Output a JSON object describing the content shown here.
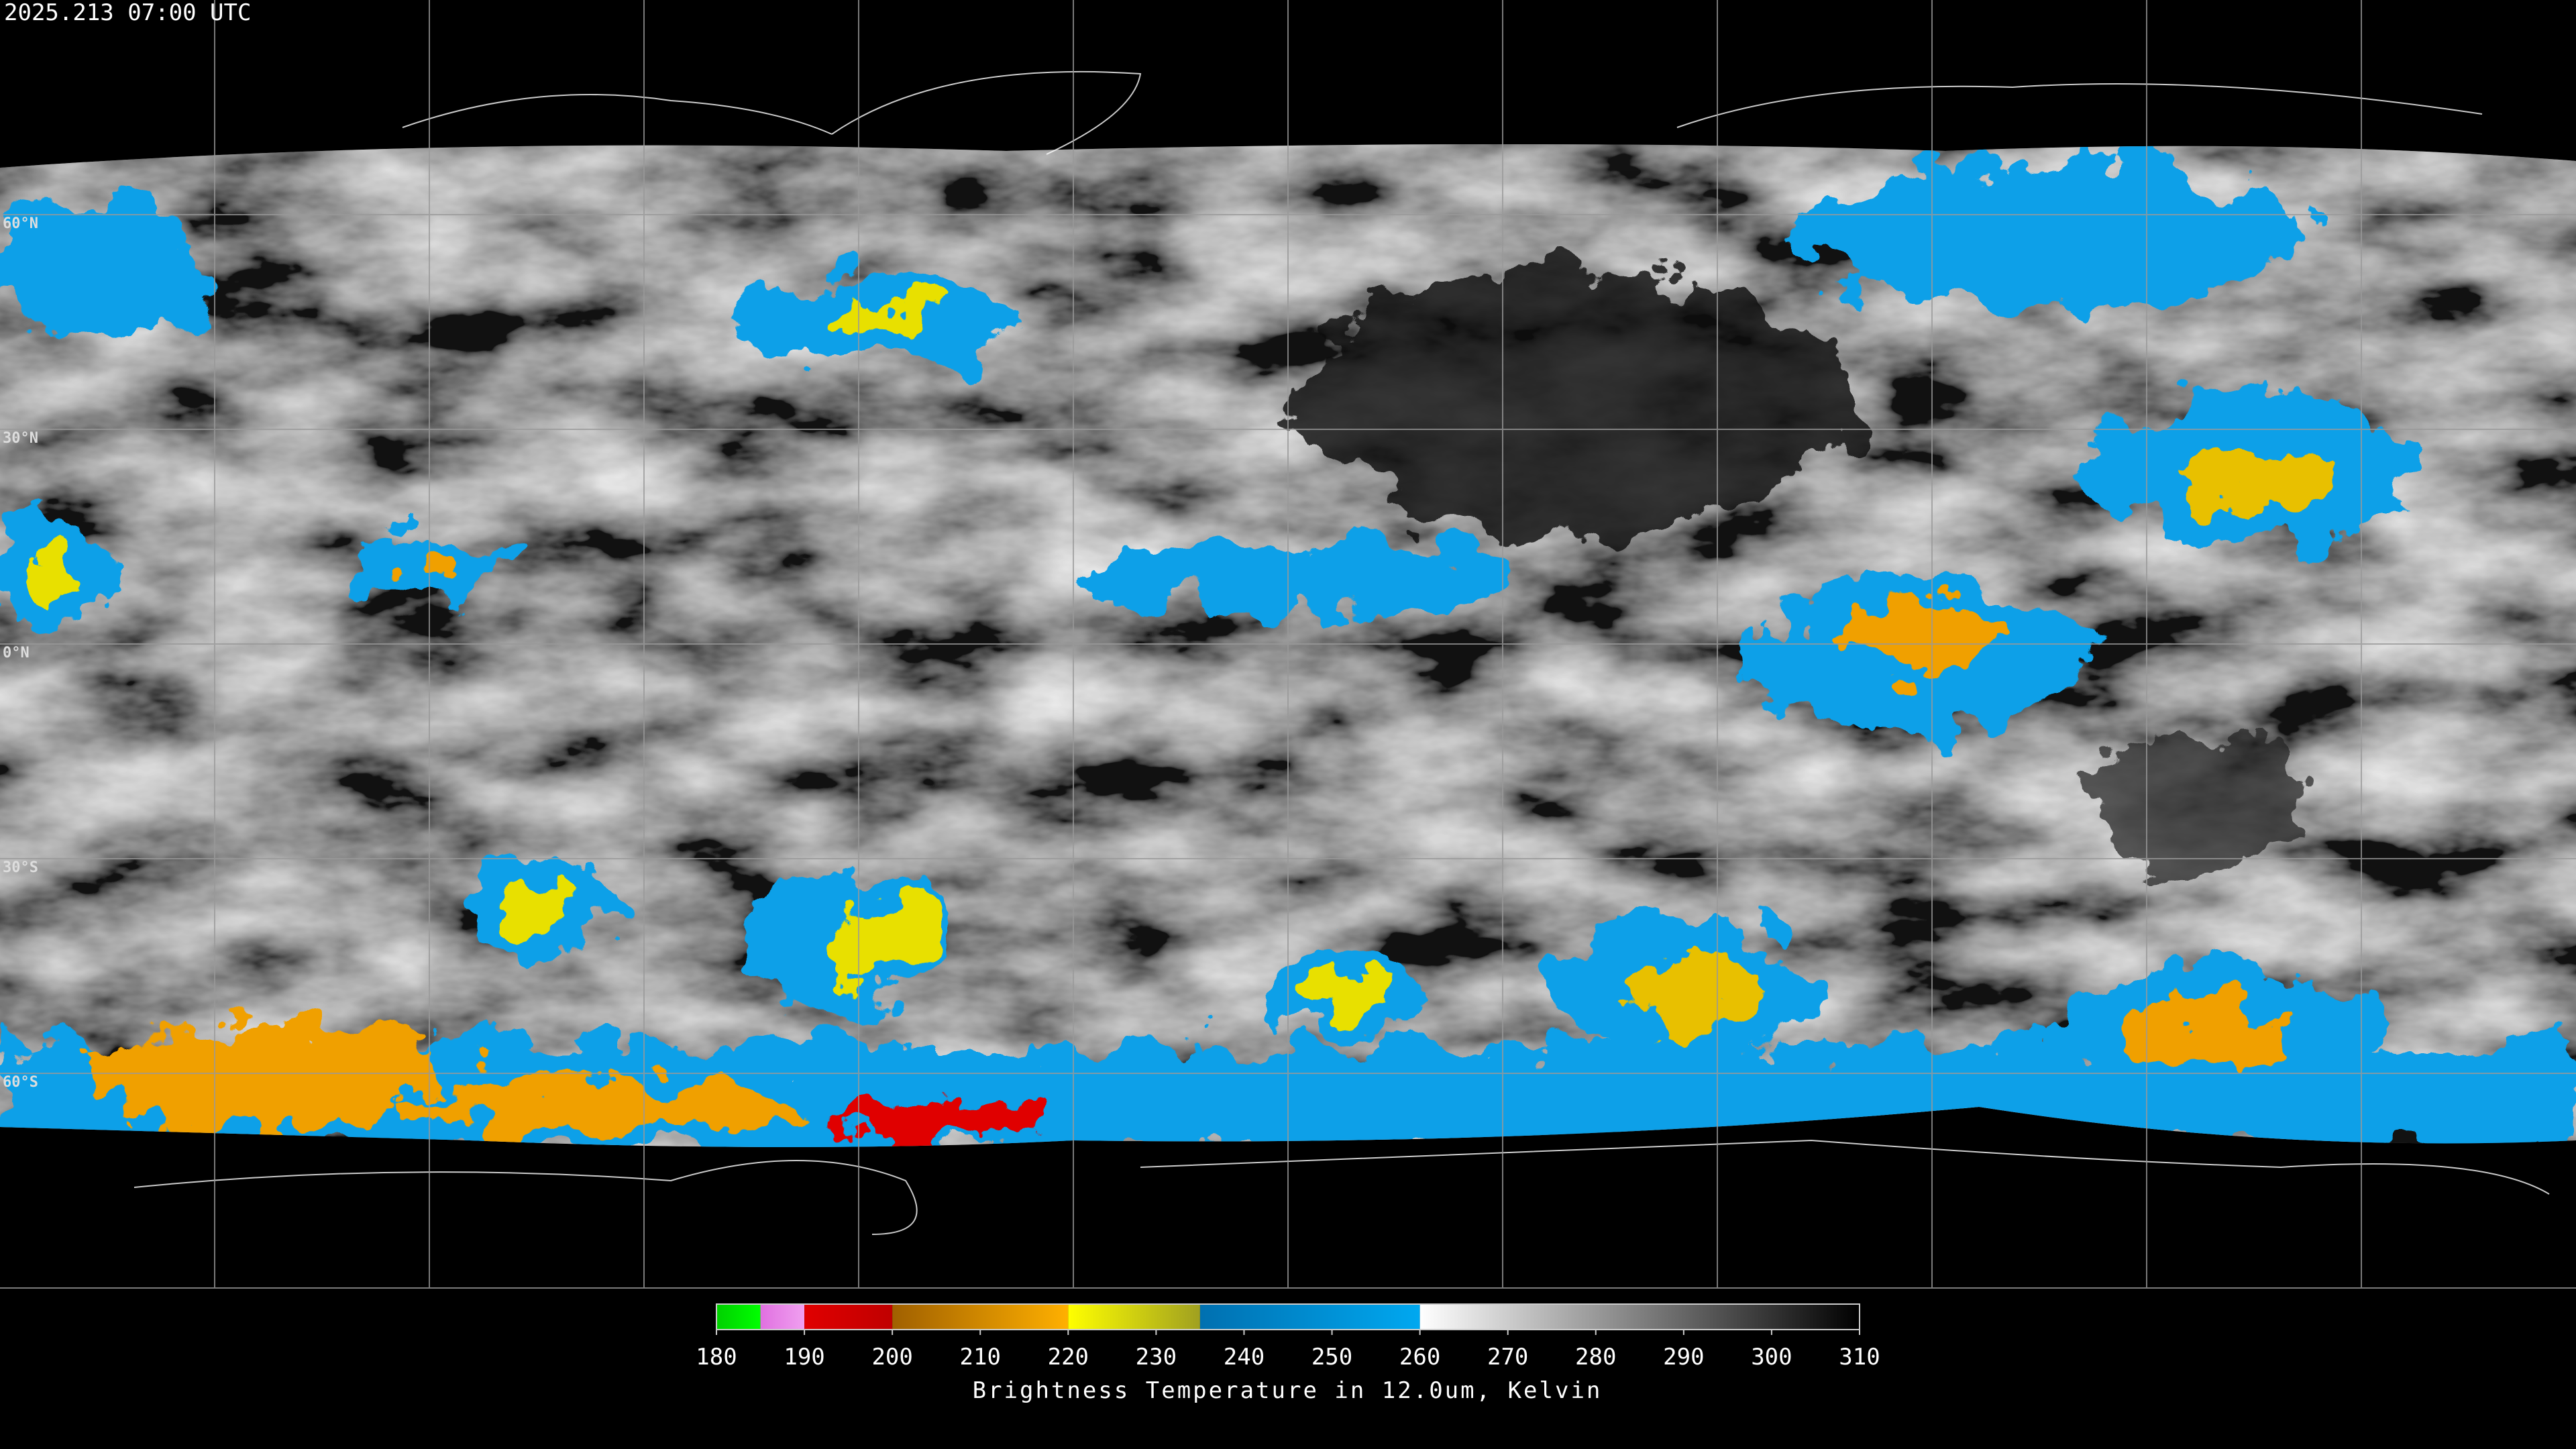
{
  "header": {
    "timestamp": "2025.213 07:00 UTC"
  },
  "map": {
    "latitude_labels": [
      "60°N",
      "30°N",
      "0°N",
      "30°S",
      "60°S"
    ]
  },
  "colorbar": {
    "label": "Brightness Temperature in 12.0um, Kelvin",
    "range": [
      180,
      310
    ],
    "ticks": [
      180,
      190,
      200,
      210,
      220,
      230,
      240,
      250,
      260,
      270,
      280,
      290,
      300,
      310
    ],
    "segments": [
      {
        "from": 180,
        "to": 185,
        "colors": [
          "#00d000",
          "#00ff00"
        ]
      },
      {
        "from": 185,
        "to": 190,
        "colors": [
          "#e070e0",
          "#f0a0f0"
        ]
      },
      {
        "from": 190,
        "to": 200,
        "colors": [
          "#e00000",
          "#c00000"
        ]
      },
      {
        "from": 200,
        "to": 220,
        "colors": [
          "#a06000",
          "#ffb000"
        ]
      },
      {
        "from": 220,
        "to": 235,
        "colors": [
          "#ffff00",
          "#a0a020"
        ]
      },
      {
        "from": 235,
        "to": 260,
        "colors": [
          "#0070b0",
          "#00a8f0"
        ]
      },
      {
        "from": 260,
        "to": 310,
        "colors": [
          "#ffffff",
          "#000000"
        ]
      }
    ]
  }
}
